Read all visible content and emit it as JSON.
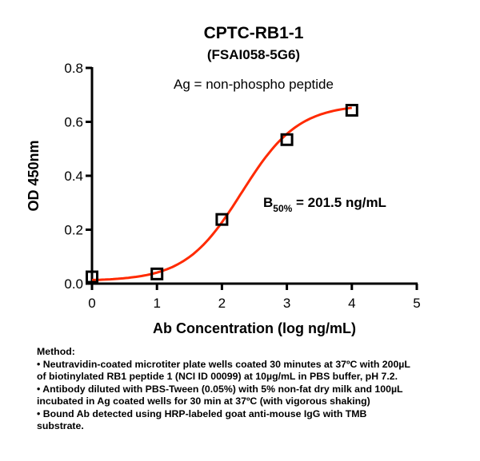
{
  "chart_data": {
    "type": "scatter",
    "title": "CPTC-RB1-1",
    "subtitle": "(FSAI058-5G6)",
    "annotation": "Ag = non-phospho peptide",
    "b50": {
      "label_main": "B",
      "label_sub": "50%",
      "label_value": " = 201.5 ng/mL"
    },
    "xlabel": "Ab Concentration (log ng/mL)",
    "ylabel": "OD 450nm",
    "xlim": [
      0,
      5
    ],
    "ylim": [
      0,
      0.8
    ],
    "xticks": [
      "0",
      "1",
      "2",
      "3",
      "4",
      "5"
    ],
    "yticks": [
      "0.0",
      "0.2",
      "0.4",
      "0.6",
      "0.8"
    ],
    "grid": false,
    "series": [
      {
        "x": [
          0,
          1,
          2,
          3,
          4
        ],
        "y": [
          0.025,
          0.036,
          0.238,
          0.534,
          0.643
        ],
        "marker": "open-square",
        "fit_line": "sigmoidal",
        "color": "#ff2a00"
      }
    ]
  },
  "method": {
    "heading": "Method:",
    "lines": [
      "• Neutravidin-coated microtiter plate wells coated 30 minutes at 37ºC  with 200µL",
      "of biotinylated RB1 peptide 1 (NCI ID 00099) at 10µg/mL in PBS buffer, pH 7.2.",
      "• Antibody diluted with PBS-Tween (0.05%) with 5% non-fat dry milk and 100µL",
      "incubated in Ag coated wells for 30 min at 37ºC (with vigorous shaking)",
      "• Bound Ab detected using HRP-labeled goat anti-mouse IgG with TMB",
      "substrate."
    ]
  }
}
